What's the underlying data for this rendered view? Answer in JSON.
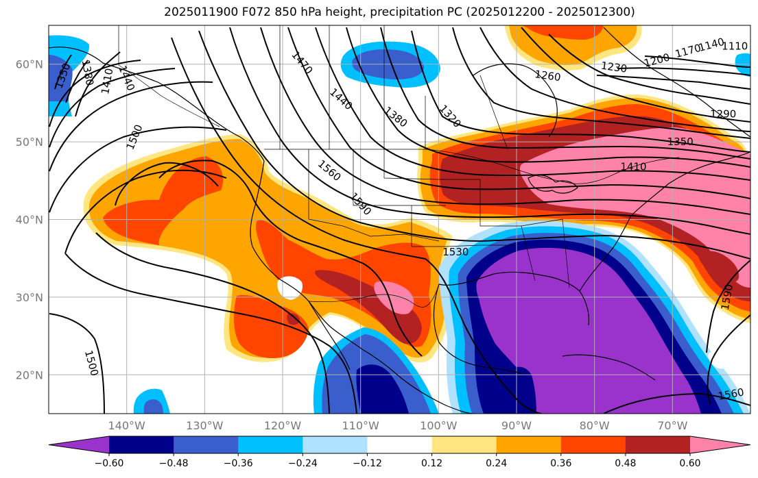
{
  "title": "2025011900 F072 850 hPa height, precipitation PC (2025012200 - 2025012300)",
  "colors": {
    "neg_060": "#9933cc",
    "neg_048": "#00008b",
    "neg_036": "#3a5fcd",
    "neg_024": "#00bfff",
    "neg_012": "#b0e2ff",
    "neutral": "#ffffff",
    "pos_012": "#ffe680",
    "pos_024": "#ffa500",
    "pos_036": "#ff4500",
    "pos_048": "#b22222",
    "pos_060": "#ff82ab",
    "grid": "#b0b0b0",
    "contour": "#000000"
  },
  "map": {
    "lon_range": [
      -150,
      -60
    ],
    "lat_range": [
      15,
      65
    ],
    "lat_ticks": [
      {
        "value": 60,
        "label": "60°N"
      },
      {
        "value": 50,
        "label": "50°N"
      },
      {
        "value": 40,
        "label": "40°N"
      },
      {
        "value": 30,
        "label": "30°N"
      },
      {
        "value": 20,
        "label": "20°N"
      }
    ],
    "lon_ticks": [
      {
        "value": -140,
        "label": "140°W"
      },
      {
        "value": -130,
        "label": "130°W"
      },
      {
        "value": -120,
        "label": "120°W"
      },
      {
        "value": -110,
        "label": "110°W"
      },
      {
        "value": -100,
        "label": "100°W"
      },
      {
        "value": -90,
        "label": "90°W"
      },
      {
        "value": -80,
        "label": "80°W"
      },
      {
        "value": -70,
        "label": "70°W"
      }
    ],
    "contour_labels": [
      {
        "text": "1350",
        "lon": -148.2,
        "lat": 58.5,
        "rot": -70
      },
      {
        "text": "1380",
        "lon": -145.0,
        "lat": 58.9,
        "rot": 80
      },
      {
        "text": "1410",
        "lon": -142.5,
        "lat": 57.8,
        "rot": -80
      },
      {
        "text": "1440",
        "lon": -140.0,
        "lat": 58.2,
        "rot": 68
      },
      {
        "text": "1500",
        "lon": -139.0,
        "lat": 50.6,
        "rot": -68
      },
      {
        "text": "1470",
        "lon": -117.5,
        "lat": 60.2,
        "rot": 50
      },
      {
        "text": "1440",
        "lon": -112.5,
        "lat": 55.5,
        "rot": 42
      },
      {
        "text": "1380",
        "lon": -105.5,
        "lat": 53.2,
        "rot": 38
      },
      {
        "text": "1320",
        "lon": -98.5,
        "lat": 53.3,
        "rot": 48
      },
      {
        "text": "1560",
        "lon": -114.0,
        "lat": 46.3,
        "rot": 40
      },
      {
        "text": "1590",
        "lon": -110.0,
        "lat": 42.0,
        "rot": 48
      },
      {
        "text": "1530",
        "lon": -97.8,
        "lat": 35.8,
        "rot": 0
      },
      {
        "text": "1260",
        "lon": -86.0,
        "lat": 58.5,
        "rot": 8
      },
      {
        "text": "1230",
        "lon": -77.5,
        "lat": 59.6,
        "rot": 8
      },
      {
        "text": "1200",
        "lon": -72.0,
        "lat": 60.5,
        "rot": -15
      },
      {
        "text": "1170",
        "lon": -68.0,
        "lat": 61.7,
        "rot": -15
      },
      {
        "text": "1140",
        "lon": -65.0,
        "lat": 62.5,
        "rot": -15
      },
      {
        "text": "1110",
        "lon": -62.0,
        "lat": 62.3,
        "rot": 0
      },
      {
        "text": "1290",
        "lon": -63.5,
        "lat": 53.6,
        "rot": 0
      },
      {
        "text": "1350",
        "lon": -69.0,
        "lat": 50.0,
        "rot": 0
      },
      {
        "text": "1410",
        "lon": -75.0,
        "lat": 46.8,
        "rot": 0
      },
      {
        "text": "1590",
        "lon": -63.0,
        "lat": 30.0,
        "rot": -80
      },
      {
        "text": "1560",
        "lon": -62.5,
        "lat": 17.5,
        "rot": -10
      },
      {
        "text": "1500",
        "lon": -144.5,
        "lat": 21.5,
        "rot": 75
      }
    ]
  },
  "colorbar": {
    "labels": [
      "−0.60",
      "−0.48",
      "−0.36",
      "−0.24",
      "−0.12",
      "0.12",
      "0.24",
      "0.36",
      "0.48",
      "0.60"
    ]
  }
}
